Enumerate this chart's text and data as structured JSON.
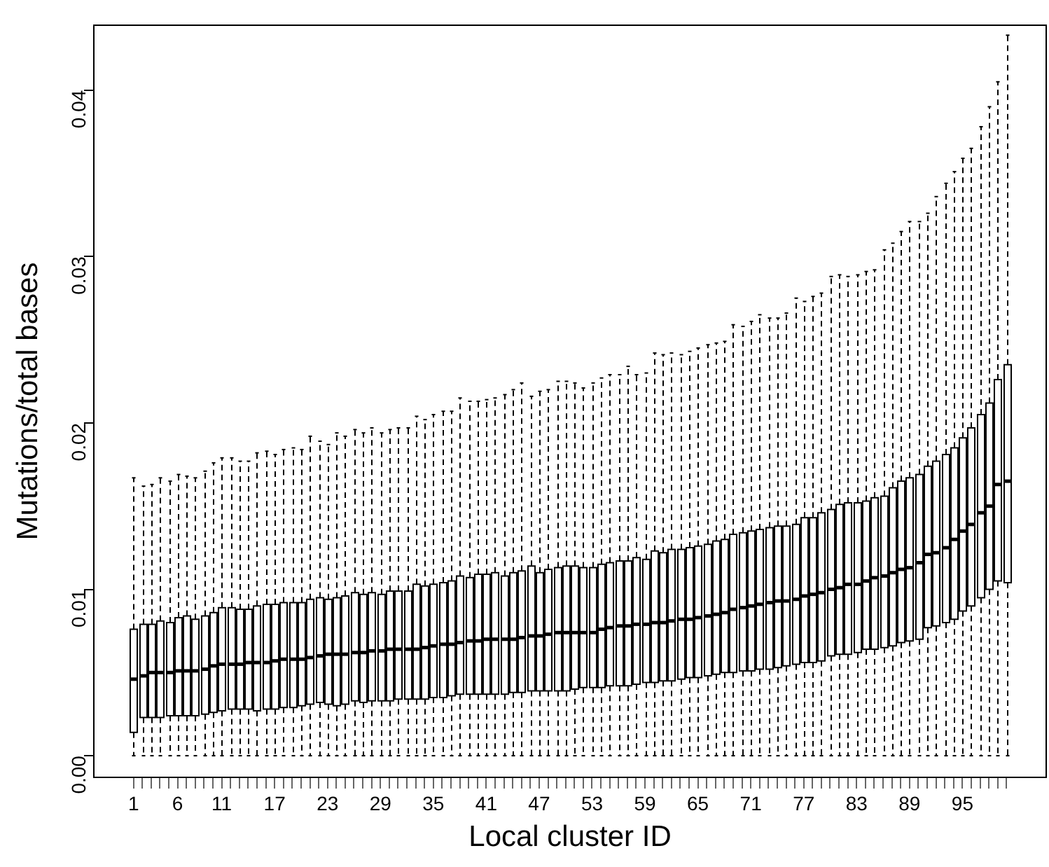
{
  "chart_data": {
    "type": "box",
    "xlabel": "Local cluster ID",
    "ylabel": "Mutations/total bases",
    "categories": [
      "1",
      null,
      null,
      null,
      null,
      "6",
      null,
      null,
      null,
      null,
      "11",
      null,
      null,
      null,
      null,
      null,
      "17",
      null,
      null,
      null,
      null,
      null,
      "23",
      null,
      null,
      null,
      null,
      null,
      "29",
      null,
      null,
      null,
      null,
      null,
      "35",
      null,
      null,
      null,
      null,
      null,
      "41",
      null,
      null,
      null,
      null,
      null,
      "47",
      null,
      null,
      null,
      null,
      null,
      "53",
      null,
      null,
      null,
      null,
      null,
      "59",
      null,
      null,
      null,
      null,
      null,
      "65",
      null,
      null,
      null,
      null,
      null,
      "71",
      null,
      null,
      null,
      null,
      null,
      "77",
      null,
      null,
      null,
      null,
      null,
      "83",
      null,
      null,
      null,
      null,
      null,
      "89",
      null,
      null,
      null,
      null,
      null,
      "95",
      null,
      null,
      null,
      null,
      null
    ],
    "ylim": [
      -0.0013,
      0.0439
    ],
    "yticks": [
      {
        "value": 0,
        "label": "0.00"
      },
      {
        "value": 0.01,
        "label": "0.01"
      },
      {
        "value": 0.02,
        "label": "0.02"
      },
      {
        "value": 0.03,
        "label": "0.03"
      },
      {
        "value": 0.04,
        "label": "0.04"
      }
    ],
    "boxes": [
      {
        "low": 0,
        "q1": 0.0014,
        "median": 0.0046,
        "q3": 0.0076,
        "high": 0.0167
      },
      {
        "low": 0,
        "q1": 0.0023,
        "median": 0.0048,
        "q3": 0.0079,
        "high": 0.0162
      },
      {
        "low": 0,
        "q1": 0.0023,
        "median": 0.005,
        "q3": 0.0079,
        "high": 0.0163
      },
      {
        "low": 0,
        "q1": 0.0023,
        "median": 0.005,
        "q3": 0.0081,
        "high": 0.0167
      },
      {
        "low": 0,
        "q1": 0.0024,
        "median": 0.005,
        "q3": 0.008,
        "high": 0.0165
      },
      {
        "low": 0,
        "q1": 0.0024,
        "median": 0.0051,
        "q3": 0.0083,
        "high": 0.0169
      },
      {
        "low": 0,
        "q1": 0.0024,
        "median": 0.0051,
        "q3": 0.0084,
        "high": 0.0168
      },
      {
        "low": 0,
        "q1": 0.0024,
        "median": 0.0051,
        "q3": 0.0082,
        "high": 0.0167
      },
      {
        "low": 0,
        "q1": 0.0025,
        "median": 0.0052,
        "q3": 0.0084,
        "high": 0.0171
      },
      {
        "low": 0,
        "q1": 0.0026,
        "median": 0.0054,
        "q3": 0.0086,
        "high": 0.0176
      },
      {
        "low": 0,
        "q1": 0.0027,
        "median": 0.0055,
        "q3": 0.0089,
        "high": 0.0179
      },
      {
        "low": 0,
        "q1": 0.0028,
        "median": 0.0055,
        "q3": 0.0089,
        "high": 0.0179
      },
      {
        "low": 0,
        "q1": 0.0028,
        "median": 0.0055,
        "q3": 0.0088,
        "high": 0.0177
      },
      {
        "low": 0,
        "q1": 0.0028,
        "median": 0.0056,
        "q3": 0.0088,
        "high": 0.0177
      },
      {
        "low": 0,
        "q1": 0.0027,
        "median": 0.0056,
        "q3": 0.009,
        "high": 0.0182
      },
      {
        "low": 0,
        "q1": 0.0028,
        "median": 0.0056,
        "q3": 0.0091,
        "high": 0.0183
      },
      {
        "low": 0,
        "q1": 0.0028,
        "median": 0.0057,
        "q3": 0.0091,
        "high": 0.0181
      },
      {
        "low": 0,
        "q1": 0.0029,
        "median": 0.0058,
        "q3": 0.0092,
        "high": 0.0184
      },
      {
        "low": 0,
        "q1": 0.0029,
        "median": 0.0058,
        "q3": 0.0092,
        "high": 0.0185
      },
      {
        "low": 0,
        "q1": 0.003,
        "median": 0.0058,
        "q3": 0.0092,
        "high": 0.0184
      },
      {
        "low": 0,
        "q1": 0.0031,
        "median": 0.0059,
        "q3": 0.0094,
        "high": 0.0192
      },
      {
        "low": 0,
        "q1": 0.0032,
        "median": 0.006,
        "q3": 0.0095,
        "high": 0.0189
      },
      {
        "low": 0,
        "q1": 0.0031,
        "median": 0.0061,
        "q3": 0.0094,
        "high": 0.0187
      },
      {
        "low": 0,
        "q1": 0.003,
        "median": 0.0061,
        "q3": 0.0095,
        "high": 0.0194
      },
      {
        "low": 0,
        "q1": 0.0031,
        "median": 0.0061,
        "q3": 0.0096,
        "high": 0.0192
      },
      {
        "low": 0,
        "q1": 0.0033,
        "median": 0.0062,
        "q3": 0.0098,
        "high": 0.0196
      },
      {
        "low": 0,
        "q1": 0.0032,
        "median": 0.0062,
        "q3": 0.0097,
        "high": 0.0194
      },
      {
        "low": 0,
        "q1": 0.0033,
        "median": 0.0063,
        "q3": 0.0098,
        "high": 0.0197
      },
      {
        "low": 0,
        "q1": 0.0033,
        "median": 0.0063,
        "q3": 0.0097,
        "high": 0.0194
      },
      {
        "low": 0,
        "q1": 0.0033,
        "median": 0.0064,
        "q3": 0.0099,
        "high": 0.0196
      },
      {
        "low": 0,
        "q1": 0.0034,
        "median": 0.0064,
        "q3": 0.0099,
        "high": 0.0197
      },
      {
        "low": 0,
        "q1": 0.0034,
        "median": 0.0064,
        "q3": 0.0099,
        "high": 0.0197
      },
      {
        "low": 0,
        "q1": 0.0034,
        "median": 0.0064,
        "q3": 0.0103,
        "high": 0.0204
      },
      {
        "low": 0,
        "q1": 0.0034,
        "median": 0.0065,
        "q3": 0.0102,
        "high": 0.0202
      },
      {
        "low": 0,
        "q1": 0.0035,
        "median": 0.0066,
        "q3": 0.0103,
        "high": 0.0205
      },
      {
        "low": 0,
        "q1": 0.0035,
        "median": 0.0067,
        "q3": 0.0104,
        "high": 0.0207
      },
      {
        "low": 0,
        "q1": 0.0036,
        "median": 0.0067,
        "q3": 0.0105,
        "high": 0.0207
      },
      {
        "low": 0,
        "q1": 0.0037,
        "median": 0.0068,
        "q3": 0.0108,
        "high": 0.0215
      },
      {
        "low": 0,
        "q1": 0.0037,
        "median": 0.0069,
        "q3": 0.0107,
        "high": 0.0213
      },
      {
        "low": 0,
        "q1": 0.0037,
        "median": 0.0069,
        "q3": 0.0109,
        "high": 0.0213
      },
      {
        "low": 0,
        "q1": 0.0037,
        "median": 0.007,
        "q3": 0.0109,
        "high": 0.0214
      },
      {
        "low": 0,
        "q1": 0.0037,
        "median": 0.007,
        "q3": 0.011,
        "high": 0.0215
      },
      {
        "low": 0,
        "q1": 0.0037,
        "median": 0.007,
        "q3": 0.0108,
        "high": 0.0217
      },
      {
        "low": 0,
        "q1": 0.0038,
        "median": 0.007,
        "q3": 0.011,
        "high": 0.022
      },
      {
        "low": 0,
        "q1": 0.0038,
        "median": 0.0071,
        "q3": 0.0111,
        "high": 0.0224
      },
      {
        "low": 0,
        "q1": 0.0039,
        "median": 0.0072,
        "q3": 0.0114,
        "high": 0.0216
      },
      {
        "low": 0,
        "q1": 0.0039,
        "median": 0.0072,
        "q3": 0.011,
        "high": 0.0219
      },
      {
        "low": 0,
        "q1": 0.0039,
        "median": 0.0073,
        "q3": 0.0112,
        "high": 0.022
      },
      {
        "low": 0,
        "q1": 0.0039,
        "median": 0.0074,
        "q3": 0.0113,
        "high": 0.0225
      },
      {
        "low": 0,
        "q1": 0.0039,
        "median": 0.0074,
        "q3": 0.0114,
        "high": 0.0225
      },
      {
        "low": 0,
        "q1": 0.004,
        "median": 0.0074,
        "q3": 0.0114,
        "high": 0.0224
      },
      {
        "low": 0,
        "q1": 0.0041,
        "median": 0.0074,
        "q3": 0.0113,
        "high": 0.0221
      },
      {
        "low": 0,
        "q1": 0.0041,
        "median": 0.0074,
        "q3": 0.0113,
        "high": 0.0224
      },
      {
        "low": 0,
        "q1": 0.0041,
        "median": 0.0076,
        "q3": 0.0115,
        "high": 0.0227
      },
      {
        "low": 0,
        "q1": 0.0042,
        "median": 0.0077,
        "q3": 0.0116,
        "high": 0.0229
      },
      {
        "low": 0,
        "q1": 0.0042,
        "median": 0.0078,
        "q3": 0.0117,
        "high": 0.0229
      },
      {
        "low": 0,
        "q1": 0.0042,
        "median": 0.0078,
        "q3": 0.0117,
        "high": 0.0234
      },
      {
        "low": 0,
        "q1": 0.0043,
        "median": 0.0079,
        "q3": 0.0119,
        "high": 0.0229
      },
      {
        "low": 0,
        "q1": 0.0044,
        "median": 0.0079,
        "q3": 0.0118,
        "high": 0.023
      },
      {
        "low": 0,
        "q1": 0.0044,
        "median": 0.008,
        "q3": 0.0123,
        "high": 0.0242
      },
      {
        "low": 0,
        "q1": 0.0045,
        "median": 0.008,
        "q3": 0.0122,
        "high": 0.0241
      },
      {
        "low": 0,
        "q1": 0.0045,
        "median": 0.0081,
        "q3": 0.0124,
        "high": 0.0242
      },
      {
        "low": 0,
        "q1": 0.0046,
        "median": 0.0082,
        "q3": 0.0124,
        "high": 0.0241
      },
      {
        "low": 0,
        "q1": 0.0047,
        "median": 0.0082,
        "q3": 0.0125,
        "high": 0.0243
      },
      {
        "low": 0,
        "q1": 0.0047,
        "median": 0.0083,
        "q3": 0.0126,
        "high": 0.0245
      },
      {
        "low": 0,
        "q1": 0.0048,
        "median": 0.0084,
        "q3": 0.0127,
        "high": 0.0247
      },
      {
        "low": 0,
        "q1": 0.0049,
        "median": 0.0085,
        "q3": 0.0129,
        "high": 0.0248
      },
      {
        "low": 0,
        "q1": 0.005,
        "median": 0.0086,
        "q3": 0.013,
        "high": 0.0249
      },
      {
        "low": 0,
        "q1": 0.005,
        "median": 0.0088,
        "q3": 0.0133,
        "high": 0.0259
      },
      {
        "low": 0,
        "q1": 0.0051,
        "median": 0.0089,
        "q3": 0.0134,
        "high": 0.0258
      },
      {
        "low": 0,
        "q1": 0.0051,
        "median": 0.009,
        "q3": 0.0135,
        "high": 0.0261
      },
      {
        "low": 0,
        "q1": 0.0052,
        "median": 0.0091,
        "q3": 0.0136,
        "high": 0.0265
      },
      {
        "low": 0,
        "q1": 0.0052,
        "median": 0.0092,
        "q3": 0.0137,
        "high": 0.0263
      },
      {
        "low": 0,
        "q1": 0.0053,
        "median": 0.0093,
        "q3": 0.0138,
        "high": 0.0263
      },
      {
        "low": 0,
        "q1": 0.0054,
        "median": 0.0093,
        "q3": 0.0138,
        "high": 0.0266
      },
      {
        "low": 0,
        "q1": 0.0055,
        "median": 0.0094,
        "q3": 0.0139,
        "high": 0.0275
      },
      {
        "low": 0,
        "q1": 0.0056,
        "median": 0.0096,
        "q3": 0.0143,
        "high": 0.0273
      },
      {
        "low": 0,
        "q1": 0.0056,
        "median": 0.0097,
        "q3": 0.0143,
        "high": 0.0276
      },
      {
        "low": 0,
        "q1": 0.0057,
        "median": 0.0098,
        "q3": 0.0146,
        "high": 0.0278
      },
      {
        "low": 0,
        "q1": 0.006,
        "median": 0.01,
        "q3": 0.0148,
        "high": 0.0288
      },
      {
        "low": 0,
        "q1": 0.0061,
        "median": 0.0101,
        "q3": 0.0151,
        "high": 0.0289
      },
      {
        "low": 0,
        "q1": 0.0061,
        "median": 0.0103,
        "q3": 0.0152,
        "high": 0.0288
      },
      {
        "low": 0,
        "q1": 0.0062,
        "median": 0.0103,
        "q3": 0.0152,
        "high": 0.0289
      },
      {
        "low": 0,
        "q1": 0.0064,
        "median": 0.0105,
        "q3": 0.0153,
        "high": 0.0291
      },
      {
        "low": 0,
        "q1": 0.0064,
        "median": 0.0107,
        "q3": 0.0155,
        "high": 0.0292
      },
      {
        "low": 0,
        "q1": 0.0065,
        "median": 0.0108,
        "q3": 0.0156,
        "high": 0.0304
      },
      {
        "low": 0,
        "q1": 0.0066,
        "median": 0.011,
        "q3": 0.0161,
        "high": 0.0308
      },
      {
        "low": 0,
        "q1": 0.0068,
        "median": 0.0112,
        "q3": 0.0165,
        "high": 0.0315
      },
      {
        "low": 0,
        "q1": 0.0069,
        "median": 0.0113,
        "q3": 0.0167,
        "high": 0.0321
      },
      {
        "low": 0,
        "q1": 0.007,
        "median": 0.0116,
        "q3": 0.0169,
        "high": 0.0321
      },
      {
        "low": 0,
        "q1": 0.0077,
        "median": 0.0121,
        "q3": 0.0174,
        "high": 0.0326
      },
      {
        "low": 0,
        "q1": 0.0078,
        "median": 0.0122,
        "q3": 0.0177,
        "high": 0.0336
      },
      {
        "low": 0,
        "q1": 0.008,
        "median": 0.0125,
        "q3": 0.0181,
        "high": 0.0344
      },
      {
        "low": 0,
        "q1": 0.0082,
        "median": 0.013,
        "q3": 0.0185,
        "high": 0.0351
      },
      {
        "low": 0,
        "q1": 0.0087,
        "median": 0.0135,
        "q3": 0.0191,
        "high": 0.0359
      },
      {
        "low": 0,
        "q1": 0.009,
        "median": 0.0139,
        "q3": 0.0197,
        "high": 0.0365
      },
      {
        "low": 0,
        "q1": 0.0095,
        "median": 0.0146,
        "q3": 0.0205,
        "high": 0.0378
      },
      {
        "low": 0,
        "q1": 0.01,
        "median": 0.015,
        "q3": 0.0212,
        "high": 0.039
      },
      {
        "low": 0,
        "q1": 0.0105,
        "median": 0.0163,
        "q3": 0.0226,
        "high": 0.0405
      },
      {
        "low": 0,
        "q1": 0.0104,
        "median": 0.0165,
        "q3": 0.0235,
        "high": 0.0433
      }
    ]
  }
}
